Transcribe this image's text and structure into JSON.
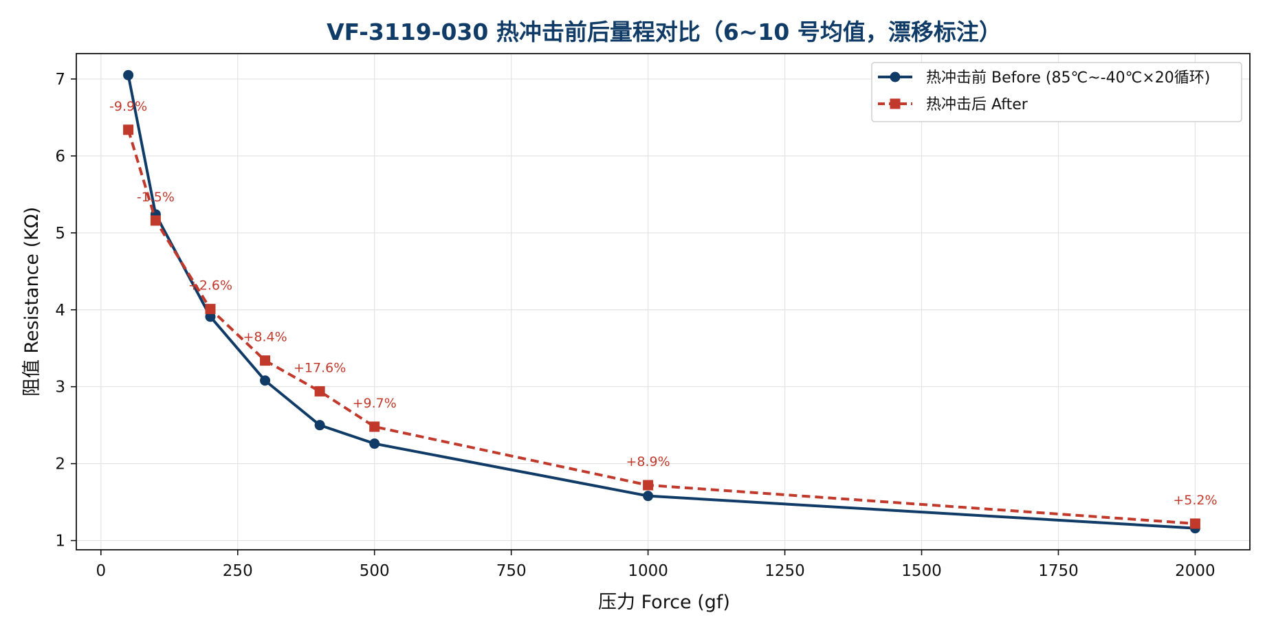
{
  "chart_data": {
    "type": "line",
    "title": "VF-3119-030 热冲击前后量程对比（6~10 号均值，漂移标注）",
    "xlabel": "压力 Force (gf)",
    "ylabel": "阻值 Resistance (KΩ)",
    "xlim": [
      -45,
      2100
    ],
    "ylim": [
      0.88,
      7.33
    ],
    "x_ticks": [
      0,
      250,
      500,
      750,
      1000,
      1250,
      1500,
      1750,
      2000
    ],
    "y_ticks": [
      1,
      2,
      3,
      4,
      5,
      6,
      7
    ],
    "x_tick_labels": [
      "0",
      "250",
      "500",
      "750",
      "1000",
      "1250",
      "1500",
      "1750",
      "2000"
    ],
    "y_tick_labels": [
      "1",
      "2",
      "3",
      "4",
      "5",
      "6",
      "7"
    ],
    "grid": true,
    "legend_position": "top-right",
    "x": [
      50,
      100,
      200,
      300,
      400,
      500,
      1000,
      2000
    ],
    "series": [
      {
        "name": "热冲击前 Before (85℃~-40℃×20循环)",
        "values": [
          7.05,
          5.24,
          3.91,
          3.08,
          2.5,
          2.26,
          1.58,
          1.16
        ],
        "color": "#0f3b66",
        "style": "solid",
        "marker": "circle"
      },
      {
        "name": "热冲击后 After",
        "values": [
          6.34,
          5.16,
          4.01,
          3.34,
          2.94,
          2.48,
          1.72,
          1.22
        ],
        "color": "#c0392b",
        "style": "dashed",
        "marker": "square"
      }
    ],
    "annotations": [
      {
        "x": 50,
        "y": 6.34,
        "text": "-9.9%"
      },
      {
        "x": 100,
        "y": 5.16,
        "text": "-1.5%"
      },
      {
        "x": 200,
        "y": 4.01,
        "text": "+2.6%"
      },
      {
        "x": 300,
        "y": 3.34,
        "text": "+8.4%"
      },
      {
        "x": 400,
        "y": 2.94,
        "text": "+17.6%"
      },
      {
        "x": 500,
        "y": 2.48,
        "text": "+9.7%"
      },
      {
        "x": 1000,
        "y": 1.72,
        "text": "+8.9%"
      },
      {
        "x": 2000,
        "y": 1.22,
        "text": "+5.2%"
      }
    ],
    "colors": {
      "title": "#0f3b66",
      "before": "#0f3b66",
      "after": "#c0392b",
      "grid": "#e3e3e3",
      "annotation": "#c0392b"
    }
  }
}
